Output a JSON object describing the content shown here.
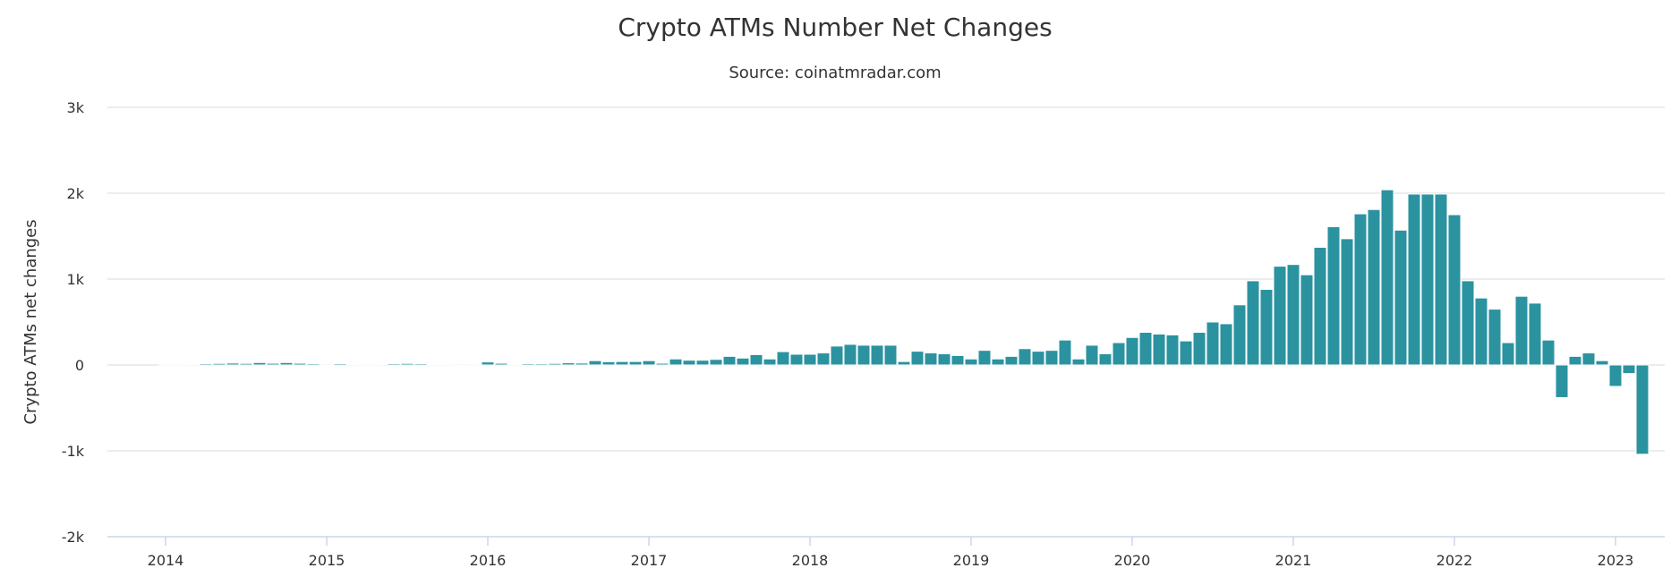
{
  "chart_data": {
    "type": "bar",
    "title": "Crypto ATMs Number Net Changes",
    "subtitle": "Source: coinatmradar.com",
    "ylabel": "Crypto ATMs net changes",
    "xlabel": "",
    "ylim": [
      -2000,
      3000
    ],
    "yticks": [
      {
        "value": 3000,
        "label": "3k"
      },
      {
        "value": 2000,
        "label": "2k"
      },
      {
        "value": 1000,
        "label": "1k"
      },
      {
        "value": 0,
        "label": "0"
      },
      {
        "value": -1000,
        "label": "-1k"
      },
      {
        "value": -2000,
        "label": "-2k"
      }
    ],
    "xticks": [
      {
        "label": "2014",
        "index": 0
      },
      {
        "label": "2015",
        "index": 12
      },
      {
        "label": "2016",
        "index": 24
      },
      {
        "label": "2017",
        "index": 36
      },
      {
        "label": "2018",
        "index": 48
      },
      {
        "label": "2019",
        "index": 60
      },
      {
        "label": "2020",
        "index": 72
      },
      {
        "label": "2021",
        "index": 84
      },
      {
        "label": "2022",
        "index": 96
      },
      {
        "label": "2023",
        "index": 108
      }
    ],
    "first_month": "2014-01",
    "grid": true,
    "legend": "none",
    "color": "#2b93a0",
    "values": [
      3,
      2,
      8,
      15,
      18,
      22,
      18,
      28,
      20,
      28,
      20,
      15,
      -5,
      15,
      5,
      3,
      8,
      15,
      18,
      15,
      10,
      5,
      0,
      3,
      35,
      20,
      5,
      15,
      15,
      18,
      25,
      22,
      50,
      38,
      40,
      40,
      50,
      20,
      70,
      55,
      55,
      65,
      100,
      80,
      120,
      70,
      155,
      125,
      125,
      140,
      220,
      240,
      230,
      230,
      230,
      40,
      160,
      140,
      130,
      110,
      70,
      170,
      70,
      100,
      190,
      160,
      170,
      290,
      70,
      230,
      130,
      260,
      320,
      380,
      360,
      350,
      280,
      380,
      500,
      480,
      700,
      980,
      880,
      1150,
      1170,
      1050,
      1370,
      1610,
      1470,
      1760,
      1810,
      2040,
      1570,
      1990,
      1990,
      1990,
      1750,
      980,
      780,
      650,
      260,
      800,
      720,
      290,
      -380,
      100,
      140,
      50,
      -250,
      -100,
      -1040
    ]
  }
}
